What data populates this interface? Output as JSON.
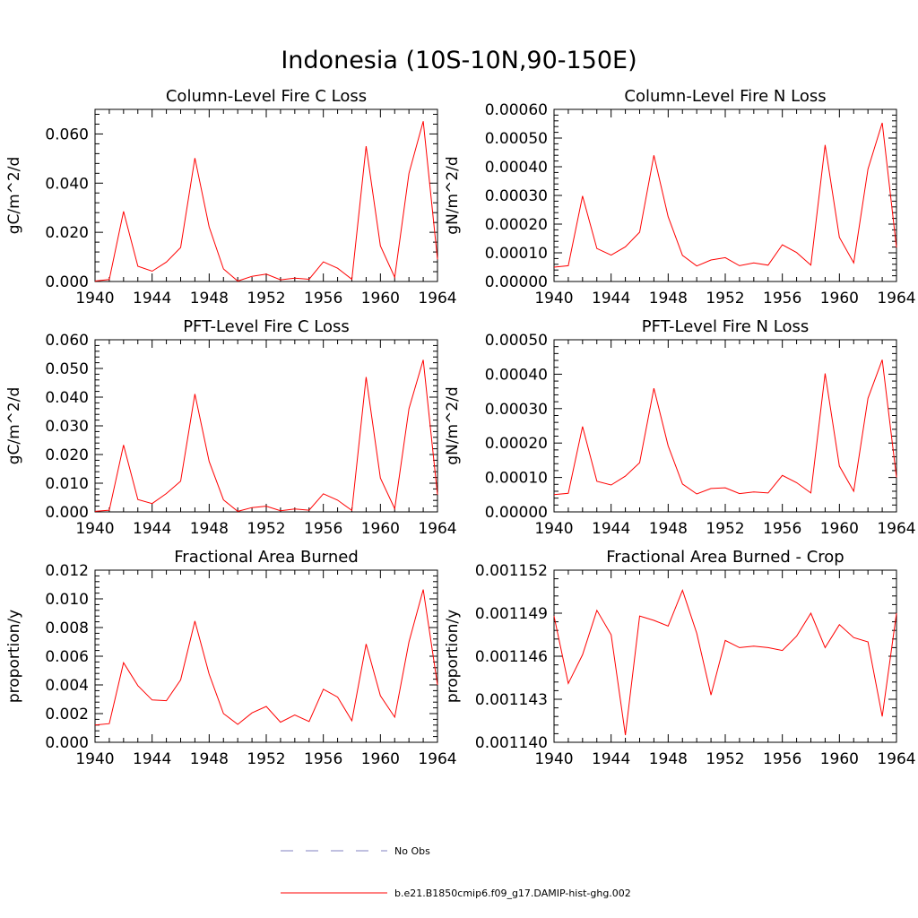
{
  "page_title": "Indonesia (10S-10N,90-150E)",
  "legend": [
    {
      "label": "No Obs",
      "color": "#8080c0",
      "dash": true
    },
    {
      "label": "b.e21.B1850cmip6.f09_g17.DAMIP-hist-ghg.002",
      "color": "#ff0000",
      "dash": false
    }
  ],
  "chart_data": [
    {
      "type": "line",
      "title": "Column-Level Fire C Loss",
      "ylabel": "gC/m^2/d",
      "xlabel": "",
      "xlim": [
        1940,
        1964
      ],
      "ylim": [
        0,
        0.07
      ],
      "xticks": [
        1940,
        1944,
        1948,
        1952,
        1956,
        1960,
        1964
      ],
      "xtick_labels": [
        "1940",
        "1944",
        "1948",
        "1952",
        "1956",
        "1960",
        "1964"
      ],
      "yticks": [
        0,
        0.02,
        0.04,
        0.06
      ],
      "ytick_labels": [
        "0.000",
        "0.020",
        "0.040",
        "0.060"
      ],
      "x": [
        1940,
        1941,
        1942,
        1943,
        1944,
        1945,
        1946,
        1947,
        1948,
        1949,
        1950,
        1951,
        1952,
        1953,
        1954,
        1955,
        1956,
        1957,
        1958,
        1959,
        1960,
        1961,
        1962,
        1963,
        1964
      ],
      "series": [
        {
          "name": "b.e21.B1850cmip6.f09_g17.DAMIP-hist-ghg.002",
          "color": "#ff0000",
          "values": [
            0.0002,
            0.0008,
            0.0285,
            0.0062,
            0.0042,
            0.0079,
            0.0138,
            0.0502,
            0.0222,
            0.0051,
            0.0002,
            0.0021,
            0.003,
            0.0007,
            0.0014,
            0.0009,
            0.008,
            0.0054,
            0.0009,
            0.055,
            0.0145,
            0.0017,
            0.044,
            0.0652,
            0.009
          ]
        }
      ]
    },
    {
      "type": "line",
      "title": "Column-Level Fire N Loss",
      "ylabel": "gN/m^2/d",
      "xlabel": "",
      "xlim": [
        1940,
        1964
      ],
      "ylim": [
        0,
        0.0006
      ],
      "xticks": [
        1940,
        1944,
        1948,
        1952,
        1956,
        1960,
        1964
      ],
      "xtick_labels": [
        "1940",
        "1944",
        "1948",
        "1952",
        "1956",
        "1960",
        "1964"
      ],
      "yticks": [
        0,
        0.0001,
        0.0002,
        0.0003,
        0.0004,
        0.0005,
        0.0006
      ],
      "ytick_labels": [
        "0.00000",
        "0.00010",
        "0.00020",
        "0.00030",
        "0.00040",
        "0.00050",
        "0.00060"
      ],
      "x": [
        1940,
        1941,
        1942,
        1943,
        1944,
        1945,
        1946,
        1947,
        1948,
        1949,
        1950,
        1951,
        1952,
        1953,
        1954,
        1955,
        1956,
        1957,
        1958,
        1959,
        1960,
        1961,
        1962,
        1963,
        1964
      ],
      "series": [
        {
          "name": "b.e21.B1850cmip6.f09_g17.DAMIP-hist-ghg.002",
          "color": "#ff0000",
          "values": [
            5e-05,
            5.5e-05,
            0.000298,
            0.000115,
            9.2e-05,
            0.000121,
            0.000172,
            0.00044,
            0.000226,
            9.1e-05,
            5.4e-05,
            7.5e-05,
            8.3e-05,
            5.5e-05,
            6.5e-05,
            5.7e-05,
            0.000128,
            0.000101,
            5.7e-05,
            0.000476,
            0.000154,
            6.5e-05,
            0.000392,
            0.000553,
            0.000118
          ]
        }
      ]
    },
    {
      "type": "line",
      "title": "PFT-Level Fire C Loss",
      "ylabel": "gC/m^2/d",
      "xlabel": "",
      "xlim": [
        1940,
        1964
      ],
      "ylim": [
        0,
        0.06
      ],
      "xticks": [
        1940,
        1944,
        1948,
        1952,
        1956,
        1960,
        1964
      ],
      "xtick_labels": [
        "1940",
        "1944",
        "1948",
        "1952",
        "1956",
        "1960",
        "1964"
      ],
      "yticks": [
        0,
        0.01,
        0.02,
        0.03,
        0.04,
        0.05,
        0.06
      ],
      "ytick_labels": [
        "0.000",
        "0.010",
        "0.020",
        "0.030",
        "0.040",
        "0.050",
        "0.060"
      ],
      "x": [
        1940,
        1941,
        1942,
        1943,
        1944,
        1945,
        1946,
        1947,
        1948,
        1949,
        1950,
        1951,
        1952,
        1953,
        1954,
        1955,
        1956,
        1957,
        1958,
        1959,
        1960,
        1961,
        1962,
        1963,
        1964
      ],
      "series": [
        {
          "name": "b.e21.B1850cmip6.f09_g17.DAMIP-hist-ghg.002",
          "color": "#ff0000",
          "values": [
            0.0002,
            0.0006,
            0.0233,
            0.0043,
            0.0029,
            0.0064,
            0.0107,
            0.0411,
            0.0176,
            0.0042,
            0.0002,
            0.0015,
            0.002,
            0.0004,
            0.001,
            0.0006,
            0.0063,
            0.0041,
            0.0005,
            0.047,
            0.0118,
            0.0011,
            0.036,
            0.053,
            0.006
          ]
        }
      ]
    },
    {
      "type": "line",
      "title": "PFT-Level Fire N Loss",
      "ylabel": "gN/m^2/d",
      "xlabel": "",
      "xlim": [
        1940,
        1964
      ],
      "ylim": [
        0,
        0.0005
      ],
      "xticks": [
        1940,
        1944,
        1948,
        1952,
        1956,
        1960,
        1964
      ],
      "xtick_labels": [
        "1940",
        "1944",
        "1948",
        "1952",
        "1956",
        "1960",
        "1964"
      ],
      "yticks": [
        0,
        0.0001,
        0.0002,
        0.0003,
        0.0004,
        0.0005
      ],
      "ytick_labels": [
        "0.00000",
        "0.00010",
        "0.00020",
        "0.00030",
        "0.00040",
        "0.00050"
      ],
      "x": [
        1940,
        1941,
        1942,
        1943,
        1944,
        1945,
        1946,
        1947,
        1948,
        1949,
        1950,
        1951,
        1952,
        1953,
        1954,
        1955,
        1956,
        1957,
        1958,
        1959,
        1960,
        1961,
        1962,
        1963,
        1964
      ],
      "series": [
        {
          "name": "b.e21.B1850cmip6.f09_g17.DAMIP-hist-ghg.002",
          "color": "#ff0000",
          "values": [
            5e-05,
            5.4e-05,
            0.000248,
            8.9e-05,
            7.8e-05,
            0.000104,
            0.000143,
            0.000359,
            0.000192,
            8.1e-05,
            5.2e-05,
            6.8e-05,
            7e-05,
            5.3e-05,
            5.8e-05,
            5.5e-05,
            0.000106,
            8.5e-05,
            5.5e-05,
            0.000402,
            0.000133,
            6e-05,
            0.00033,
            0.000442,
            0.0001
          ]
        }
      ]
    },
    {
      "type": "line",
      "title": "Fractional Area Burned",
      "ylabel": "proportion/y",
      "xlabel": "",
      "xlim": [
        1940,
        1964
      ],
      "ylim": [
        0,
        0.012
      ],
      "xticks": [
        1940,
        1944,
        1948,
        1952,
        1956,
        1960,
        1964
      ],
      "xtick_labels": [
        "1940",
        "1944",
        "1948",
        "1952",
        "1956",
        "1960",
        "1964"
      ],
      "yticks": [
        0,
        0.002,
        0.004,
        0.006,
        0.008,
        0.01,
        0.012
      ],
      "ytick_labels": [
        "0.000",
        "0.002",
        "0.004",
        "0.006",
        "0.008",
        "0.010",
        "0.012"
      ],
      "x": [
        1940,
        1941,
        1942,
        1943,
        1944,
        1945,
        1946,
        1947,
        1948,
        1949,
        1950,
        1951,
        1952,
        1953,
        1954,
        1955,
        1956,
        1957,
        1958,
        1959,
        1960,
        1961,
        1962,
        1963,
        1964
      ],
      "series": [
        {
          "name": "b.e21.B1850cmip6.f09_g17.DAMIP-hist-ghg.002",
          "color": "#ff0000",
          "values": [
            0.0012,
            0.0013,
            0.00555,
            0.00395,
            0.00295,
            0.0029,
            0.00435,
            0.00845,
            0.00475,
            0.002,
            0.00125,
            0.00205,
            0.0025,
            0.0014,
            0.0019,
            0.00145,
            0.0037,
            0.00315,
            0.0015,
            0.00685,
            0.00325,
            0.00175,
            0.007,
            0.01065,
            0.004
          ]
        }
      ]
    },
    {
      "type": "line",
      "title": "Fractional Area Burned - Crop",
      "ylabel": "proportion/y",
      "xlabel": "",
      "xlim": [
        1940,
        1964
      ],
      "ylim": [
        0.00114,
        0.001152
      ],
      "xticks": [
        1940,
        1944,
        1948,
        1952,
        1956,
        1960,
        1964
      ],
      "xtick_labels": [
        "1940",
        "1944",
        "1948",
        "1952",
        "1956",
        "1960",
        "1964"
      ],
      "yticks": [
        0.00114,
        0.001143,
        0.001146,
        0.001149,
        0.001152
      ],
      "ytick_labels": [
        "0.001140",
        "0.001143",
        "0.001146",
        "0.001149",
        "0.001152"
      ],
      "x": [
        1940,
        1941,
        1942,
        1943,
        1944,
        1945,
        1946,
        1947,
        1948,
        1949,
        1950,
        1951,
        1952,
        1953,
        1954,
        1955,
        1956,
        1957,
        1958,
        1959,
        1960,
        1961,
        1962,
        1963,
        1964
      ],
      "series": [
        {
          "name": "b.e21.B1850cmip6.f09_g17.DAMIP-hist-ghg.002",
          "color": "#ff0000",
          "values": [
            0.0011488,
            0.0011441,
            0.0011461,
            0.0011492,
            0.0011475,
            0.0011405,
            0.0011488,
            0.0011485,
            0.0011481,
            0.0011506,
            0.0011476,
            0.0011433,
            0.0011471,
            0.0011466,
            0.0011467,
            0.0011466,
            0.0011464,
            0.0011474,
            0.001149,
            0.0011466,
            0.0011482,
            0.0011473,
            0.001147,
            0.0011418,
            0.001149
          ]
        }
      ]
    }
  ]
}
